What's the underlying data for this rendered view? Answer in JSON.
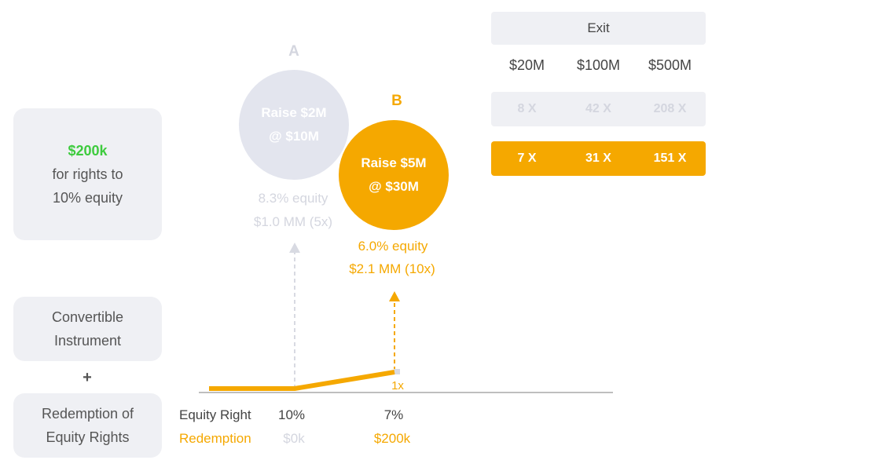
{
  "left_panel": {
    "rights_amount": "$200k",
    "rights_line2": "for rights to",
    "rights_line3": "10% equity",
    "convertible_line1": "Convertible",
    "convertible_line2": "Instrument",
    "plus": "+",
    "redemption_line1": "Redemption of",
    "redemption_line2": "Equity Rights"
  },
  "scenario_a": {
    "letter": "A",
    "line1": "Raise $2M",
    "line2": "@ $10M",
    "equity": "8.3% equity",
    "value": "$1.0 MM (5x)"
  },
  "scenario_b": {
    "letter": "B",
    "line1": "Raise $5M",
    "line2": "@ $30M",
    "equity": "6.0% equity",
    "value": "$2.1 MM (10x)"
  },
  "graph": {
    "multiplier_label": "1x",
    "equity_right_label": "Equity Right",
    "equity_right_a": "10%",
    "equity_right_b": "7%",
    "redemption_label": "Redemption",
    "redemption_a": "$0k",
    "redemption_b": "$200k"
  },
  "exit_table": {
    "header": "Exit",
    "values": [
      "$20M",
      "$100M",
      "$500M"
    ],
    "row_a": [
      "8 X",
      "42 X",
      "208 X"
    ],
    "row_b": [
      "7 X",
      "31 X",
      "151 X"
    ]
  },
  "colors": {
    "accent": "#f5a800",
    "gray_panel": "#eff0f4",
    "gray_circle": "#e3e5ee",
    "gray_text": "#d4d6df",
    "green": "#3ecb3e"
  }
}
